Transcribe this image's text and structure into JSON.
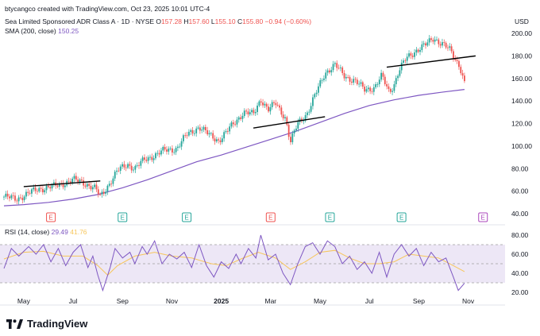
{
  "header": {
    "created_by": "btycangco created with TradingView.com, Oct 23, 2025 10:01 UTC-4",
    "symbol": "Sea Limited Sponsored ADR Class A · 1D · NYSE",
    "ohlc": {
      "O": "157.28",
      "H": "157.60",
      "L": "155.10",
      "C": "155.80"
    },
    "change": "−0.94 (−0.60%)",
    "sma_label": "SMA (200, close)",
    "sma_value": "150.25",
    "currency": "USD"
  },
  "rsi_header": {
    "label": "RSI (14, close)",
    "value": "29.49",
    "ma_value": "41.76"
  },
  "logo_text": "TradingView",
  "colors": {
    "up": "#26a69a",
    "down": "#ef5350",
    "sma": "#7e57c2",
    "rsi": "#7e57c2",
    "rsi_ma": "#f7c65b",
    "band": "#ede7f6",
    "trend": "#000000"
  },
  "chart_data": [
    {
      "type": "candlestick",
      "y_ticks": [
        "200.00",
        "180.00",
        "160.00",
        "140.00",
        "120.00",
        "100.00",
        "80.00",
        "60.00",
        "40.00"
      ],
      "ylim": [
        40,
        200
      ],
      "x_ticks": [
        "May",
        "Jul",
        "Sep",
        "Nov",
        "2025",
        "Mar",
        "May",
        "Jul",
        "Sep",
        "Nov"
      ],
      "x_tick_months": [
        0,
        2,
        4,
        6,
        8,
        10,
        12,
        14,
        16,
        18
      ],
      "xlim_months": [
        -0.8,
        19.3
      ],
      "price_path": [
        [
          -0.8,
          55
        ],
        [
          -0.3,
          53
        ],
        [
          0,
          56
        ],
        [
          0.6,
          62
        ],
        [
          1.2,
          64
        ],
        [
          1.6,
          67
        ],
        [
          2,
          70
        ],
        [
          2.4,
          68
        ],
        [
          2.9,
          62
        ],
        [
          3.1,
          55
        ],
        [
          3.5,
          68
        ],
        [
          3.8,
          78
        ],
        [
          4.2,
          84
        ],
        [
          4.5,
          80
        ],
        [
          4.9,
          88
        ],
        [
          5.3,
          92
        ],
        [
          5.7,
          96
        ],
        [
          6.2,
          98
        ],
        [
          6.6,
          110
        ],
        [
          7.1,
          117
        ],
        [
          7.5,
          110
        ],
        [
          7.9,
          105
        ],
        [
          8.2,
          112
        ],
        [
          8.5,
          120
        ],
        [
          8.9,
          130
        ],
        [
          9.3,
          128
        ],
        [
          9.6,
          142
        ],
        [
          9.9,
          132
        ],
        [
          10.2,
          138
        ],
        [
          10.6,
          125
        ],
        [
          10.8,
          103
        ],
        [
          11.1,
          120
        ],
        [
          11.5,
          130
        ],
        [
          11.8,
          145
        ],
        [
          12.2,
          165
        ],
        [
          12.6,
          172
        ],
        [
          13,
          162
        ],
        [
          13.4,
          158
        ],
        [
          13.8,
          150
        ],
        [
          14.2,
          152
        ],
        [
          14.5,
          162
        ],
        [
          14.8,
          148
        ],
        [
          15,
          155
        ],
        [
          15.2,
          167
        ],
        [
          15.5,
          178
        ],
        [
          15.9,
          185
        ],
        [
          16.3,
          190
        ],
        [
          16.6,
          196
        ],
        [
          17,
          190
        ],
        [
          17.3,
          184
        ],
        [
          17.5,
          176
        ],
        [
          17.65,
          172
        ],
        [
          17.85,
          156
        ]
      ],
      "sma_path": [
        [
          -0.8,
          47
        ],
        [
          0,
          48
        ],
        [
          1,
          50
        ],
        [
          2,
          53
        ],
        [
          3,
          57
        ],
        [
          4,
          63
        ],
        [
          5,
          70
        ],
        [
          6,
          78
        ],
        [
          7,
          86
        ],
        [
          8,
          92
        ],
        [
          9,
          99
        ],
        [
          10,
          106
        ],
        [
          11,
          113
        ],
        [
          12,
          121
        ],
        [
          13,
          129
        ],
        [
          14,
          136
        ],
        [
          15,
          141
        ],
        [
          16,
          145
        ],
        [
          17,
          148
        ],
        [
          17.85,
          150.25
        ]
      ],
      "trend_lines": [
        {
          "from": [
            0,
            64
          ],
          "to": [
            3.1,
            69
          ]
        },
        {
          "from": [
            9.3,
            116
          ],
          "to": [
            12.2,
            126
          ]
        },
        {
          "from": [
            14.7,
            170
          ],
          "to": [
            18.3,
            180
          ]
        }
      ],
      "events": [
        {
          "month": 1.1,
          "label": "E",
          "kind": "earnings"
        },
        {
          "month": 4.0,
          "label": "E",
          "kind": "earnings"
        },
        {
          "month": 6.6,
          "label": "E",
          "kind": "earnings"
        },
        {
          "month": 10.0,
          "label": "E",
          "kind": "earnings"
        },
        {
          "month": 12.4,
          "label": "E",
          "kind": "earnings"
        },
        {
          "month": 15.3,
          "label": "E",
          "kind": "earnings"
        },
        {
          "month": 18.6,
          "label": "E",
          "kind": "upcoming"
        }
      ]
    },
    {
      "type": "line",
      "name": "RSI (14, close)",
      "y_ticks": [
        "80.00",
        "60.00",
        "40.00",
        "20.00"
      ],
      "ylim": [
        20,
        80
      ],
      "band": [
        30,
        70
      ],
      "levels": [
        70,
        50,
        30
      ],
      "rsi_path": [
        [
          -0.8,
          45
        ],
        [
          -0.5,
          66
        ],
        [
          -0.2,
          58
        ],
        [
          0.2,
          68
        ],
        [
          0.5,
          60
        ],
        [
          0.8,
          70
        ],
        [
          1.1,
          52
        ],
        [
          1.4,
          66
        ],
        [
          1.7,
          48
        ],
        [
          2,
          62
        ],
        [
          2.3,
          70
        ],
        [
          2.6,
          46
        ],
        [
          2.8,
          58
        ],
        [
          3,
          38
        ],
        [
          3.2,
          22
        ],
        [
          3.5,
          46
        ],
        [
          3.7,
          66
        ],
        [
          4,
          56
        ],
        [
          4.3,
          62
        ],
        [
          4.5,
          50
        ],
        [
          4.8,
          68
        ],
        [
          5,
          60
        ],
        [
          5.3,
          74
        ],
        [
          5.6,
          50
        ],
        [
          5.9,
          60
        ],
        [
          6.2,
          55
        ],
        [
          6.5,
          62
        ],
        [
          6.8,
          46
        ],
        [
          7.1,
          70
        ],
        [
          7.4,
          48
        ],
        [
          7.7,
          36
        ],
        [
          8,
          52
        ],
        [
          8.3,
          45
        ],
        [
          8.6,
          60
        ],
        [
          8.8,
          50
        ],
        [
          9.1,
          66
        ],
        [
          9.4,
          56
        ],
        [
          9.6,
          80
        ],
        [
          9.9,
          54
        ],
        [
          10.2,
          60
        ],
        [
          10.5,
          40
        ],
        [
          10.8,
          28
        ],
        [
          11.1,
          50
        ],
        [
          11.4,
          68
        ],
        [
          11.7,
          72
        ],
        [
          12,
          60
        ],
        [
          12.3,
          74
        ],
        [
          12.6,
          68
        ],
        [
          12.9,
          50
        ],
        [
          13.2,
          58
        ],
        [
          13.5,
          44
        ],
        [
          13.8,
          52
        ],
        [
          14.1,
          40
        ],
        [
          14.4,
          62
        ],
        [
          14.7,
          36
        ],
        [
          15,
          60
        ],
        [
          15.3,
          70
        ],
        [
          15.6,
          58
        ],
        [
          15.9,
          66
        ],
        [
          16.2,
          48
        ],
        [
          16.5,
          62
        ],
        [
          16.8,
          52
        ],
        [
          17.1,
          56
        ],
        [
          17.4,
          36
        ],
        [
          17.6,
          22
        ],
        [
          17.85,
          29.49
        ]
      ],
      "rsi_ma_path": [
        [
          -0.8,
          55
        ],
        [
          0,
          62
        ],
        [
          0.8,
          63
        ],
        [
          1.6,
          58
        ],
        [
          2.4,
          58
        ],
        [
          3,
          48
        ],
        [
          3.4,
          38
        ],
        [
          3.8,
          48
        ],
        [
          4.5,
          58
        ],
        [
          5.3,
          62
        ],
        [
          6,
          58
        ],
        [
          6.8,
          56
        ],
        [
          7.6,
          50
        ],
        [
          8.2,
          48
        ],
        [
          8.8,
          55
        ],
        [
          9.5,
          62
        ],
        [
          10.2,
          56
        ],
        [
          10.8,
          44
        ],
        [
          11.4,
          52
        ],
        [
          12,
          62
        ],
        [
          12.6,
          64
        ],
        [
          13.2,
          56
        ],
        [
          13.8,
          50
        ],
        [
          14.4,
          50
        ],
        [
          15,
          52
        ],
        [
          15.6,
          60
        ],
        [
          16.2,
          58
        ],
        [
          16.8,
          56
        ],
        [
          17.4,
          48
        ],
        [
          17.85,
          41.76
        ]
      ]
    }
  ]
}
